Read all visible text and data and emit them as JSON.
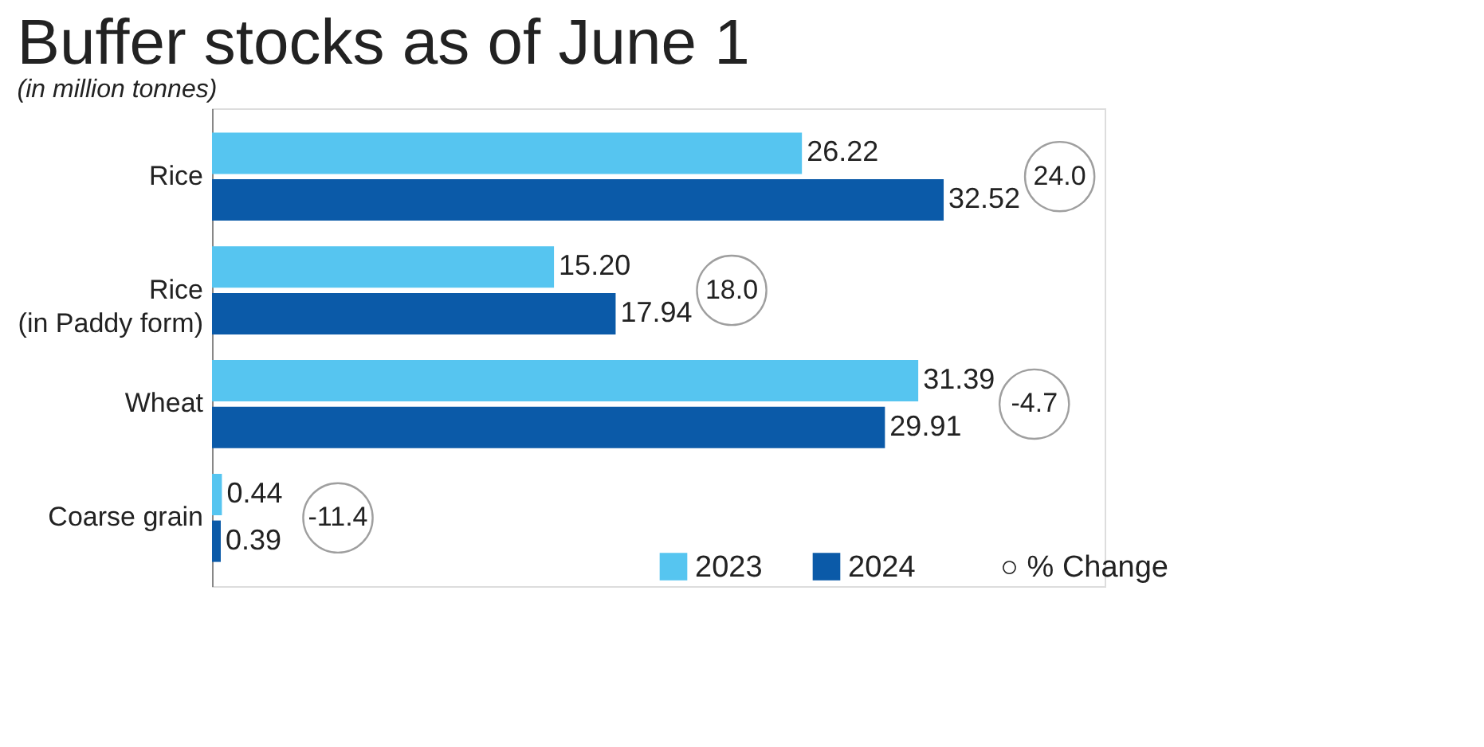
{
  "chart_data": {
    "type": "bar",
    "orientation": "horizontal",
    "title": "Buffer stocks as of June 1",
    "subtitle": "(in million tonnes)",
    "categories": [
      "Rice",
      "Rice\n(in Paddy form)",
      "Wheat",
      "Coarse grain"
    ],
    "series": [
      {
        "name": "2023",
        "color": "#56c5f0",
        "values": [
          26.22,
          15.2,
          31.39,
          0.44
        ],
        "value_labels": [
          "26.22",
          "15.20",
          "31.39",
          "0.44"
        ]
      },
      {
        "name": "2024",
        "color": "#0b5aa8",
        "values": [
          32.52,
          17.94,
          29.91,
          0.39
        ],
        "value_labels": [
          "32.52",
          "17.94",
          "29.91",
          "0.39"
        ]
      }
    ],
    "legend": "bottom right",
    "annotations": [
      "24.0",
      "18.0",
      "-4.7",
      "-11.4",
      "○ % Change"
    ]
  }
}
